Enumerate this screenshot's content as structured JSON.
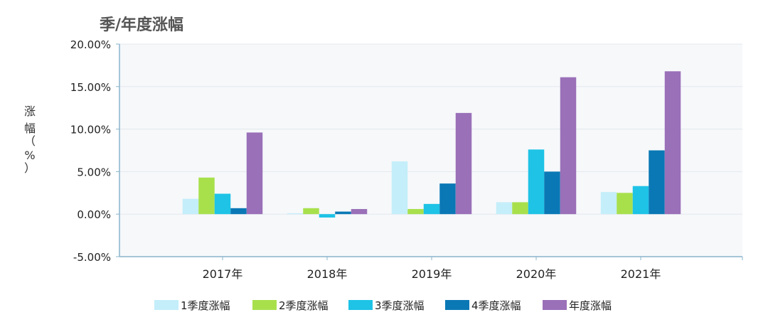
{
  "chart_data": {
    "type": "bar",
    "title": "季/年度涨幅",
    "ylabel": "涨幅（%）",
    "xlabel": "",
    "categories": [
      "2017年",
      "2018年",
      "2019年",
      "2020年",
      "2021年"
    ],
    "ylim": [
      -5,
      20
    ],
    "yticks": [
      20,
      15,
      10,
      5,
      0,
      -5
    ],
    "ytick_labels": [
      "20.00%",
      "15.00%",
      "10.00%",
      "5.00%",
      "0.00%",
      "-5.00%"
    ],
    "grid": true,
    "legend_position": "bottom",
    "series": [
      {
        "name": "1季度涨幅",
        "color": "#c4eefa",
        "values": [
          1.8,
          0.1,
          6.2,
          1.4,
          2.6
        ]
      },
      {
        "name": "2季度涨幅",
        "color": "#a8e04c",
        "values": [
          4.3,
          0.7,
          0.6,
          1.4,
          2.5
        ]
      },
      {
        "name": "3季度涨幅",
        "color": "#1ec3e6",
        "values": [
          2.4,
          -0.4,
          1.2,
          7.6,
          3.3
        ]
      },
      {
        "name": "4季度涨幅",
        "color": "#0a78b5",
        "values": [
          0.7,
          0.3,
          3.6,
          5.0,
          7.5
        ]
      },
      {
        "name": "年度涨幅",
        "color": "#9a70b8",
        "values": [
          9.6,
          0.6,
          11.9,
          16.1,
          16.8
        ]
      }
    ]
  }
}
